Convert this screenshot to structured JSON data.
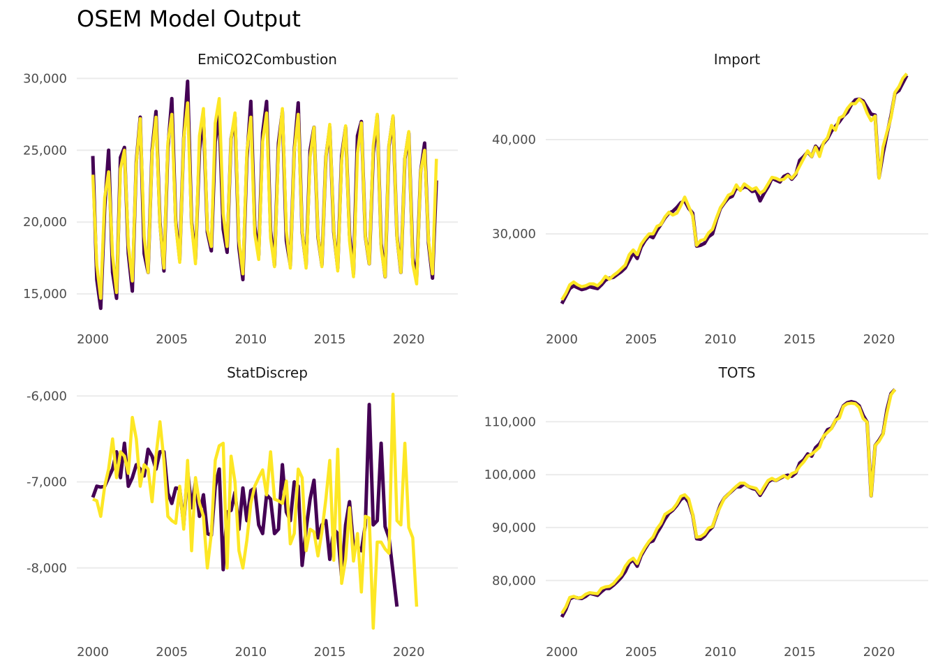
{
  "title": "OSEM Model Output",
  "colors": {
    "series_a": "#440154",
    "series_b": "#FDE725",
    "grid": "#EBEBEB"
  },
  "chart_data": [
    {
      "type": "line",
      "title": "EmiCO2Combustion",
      "x_start": 2000.0,
      "x_step": 0.25,
      "xlim": [
        2000,
        2022
      ],
      "xticks": [
        2000,
        2005,
        2010,
        2015,
        2020
      ],
      "xtick_labels": [
        "2000",
        "2005",
        "2010",
        "2015",
        "2020"
      ],
      "yticks": [
        15000,
        20000,
        25000,
        30000
      ],
      "ytick_labels": [
        "15,000",
        "20,000",
        "25,000",
        "30,000"
      ],
      "ylim": [
        13600,
        30600
      ],
      "grid": true,
      "series": [
        {
          "values": [
            24600,
            16000,
            14000,
            21000,
            25000,
            16500,
            14700,
            24500,
            25200,
            17800,
            15200,
            24200,
            27300,
            17800,
            16500,
            25000,
            27700,
            20000,
            16600,
            25100,
            28600,
            20000,
            17400,
            25800,
            29800,
            20000,
            17400,
            25000,
            27400,
            19300,
            18000,
            25600,
            27400,
            19500,
            17900,
            25800,
            27300,
            18200,
            16000,
            24400,
            28400,
            19700,
            17700,
            26200,
            28400,
            19400,
            17000,
            25500,
            27700,
            18700,
            17000,
            25000,
            28300,
            19300,
            17000,
            25000,
            26600,
            19000,
            17000,
            24500,
            26600,
            19300,
            16800,
            24600,
            26600,
            19100,
            16400,
            26000,
            27000,
            19000,
            17100,
            24800,
            27400,
            18500,
            16200,
            25300,
            27300,
            19000,
            16500,
            24400,
            26200,
            17500,
            16100,
            23500,
            25500,
            18500,
            16100,
            22900
          ]
        },
        {
          "values": [
            23300,
            17000,
            14700,
            21700,
            23500,
            17700,
            15100,
            23700,
            25000,
            18400,
            15900,
            24100,
            27200,
            19000,
            16500,
            24800,
            27300,
            19800,
            16800,
            25500,
            27500,
            19800,
            17200,
            25800,
            28300,
            19800,
            17100,
            26000,
            27900,
            19500,
            18300,
            26900,
            28600,
            20600,
            18300,
            25800,
            27600,
            18700,
            16400,
            24900,
            27300,
            19200,
            17400,
            25600,
            27600,
            18900,
            16900,
            25000,
            27900,
            19400,
            16800,
            24900,
            27500,
            19400,
            16800,
            24500,
            26600,
            19100,
            16900,
            24500,
            26800,
            19400,
            16600,
            24300,
            26700,
            18700,
            16200,
            24800,
            26900,
            19000,
            17100,
            25300,
            27500,
            18200,
            16200,
            25400,
            27400,
            18900,
            16500,
            24500,
            26300,
            17100,
            15700,
            23500,
            25000,
            18700,
            16400,
            24400
          ]
        }
      ]
    },
    {
      "type": "line",
      "title": "Import",
      "x_start": 2000.0,
      "x_step": 0.25,
      "xlim": [
        2000,
        2022
      ],
      "xticks": [
        2000,
        2005,
        2010,
        2015,
        2020
      ],
      "xtick_labels": [
        "2000",
        "2005",
        "2010",
        "2015",
        "2020"
      ],
      "yticks": [
        30000,
        40000
      ],
      "ytick_labels": [
        "30,000",
        "40,000"
      ],
      "ylim": [
        21500,
        47400
      ],
      "grid": true,
      "series": [
        {
          "values": [
            22600,
            23400,
            24200,
            24500,
            24300,
            24100,
            24200,
            24400,
            24300,
            24200,
            24600,
            25100,
            25300,
            25400,
            25700,
            26000,
            26400,
            27200,
            28000,
            27400,
            28600,
            29300,
            29800,
            29600,
            30400,
            31000,
            31700,
            32200,
            32400,
            32800,
            33300,
            33500,
            32700,
            32200,
            28700,
            28800,
            29000,
            29700,
            30000,
            31500,
            32700,
            33300,
            33800,
            34000,
            34900,
            34700,
            35000,
            34900,
            34500,
            34600,
            33500,
            34300,
            35000,
            35900,
            35700,
            35500,
            36100,
            36300,
            35800,
            36300,
            37800,
            38200,
            38700,
            38200,
            39300,
            38800,
            39600,
            40100,
            40900,
            41400,
            41900,
            42500,
            42900,
            43700,
            44200,
            44300,
            44100,
            43400,
            42700,
            42600,
            36000,
            38500,
            40600,
            42500,
            44900,
            45200,
            46000,
            46800
          ]
        },
        {
          "values": [
            23000,
            23700,
            24600,
            24900,
            24600,
            24400,
            24500,
            24700,
            24700,
            24500,
            24900,
            25500,
            25200,
            25600,
            25900,
            26300,
            26700,
            27800,
            28300,
            27800,
            28900,
            29500,
            30000,
            30000,
            30800,
            31000,
            31800,
            32300,
            32000,
            32200,
            33000,
            33900,
            32900,
            31900,
            28800,
            29300,
            29400,
            30100,
            30500,
            31700,
            32800,
            33400,
            34100,
            34300,
            35200,
            34600,
            35300,
            35000,
            34700,
            34900,
            34300,
            34600,
            35300,
            36000,
            35900,
            35700,
            35800,
            36200,
            35900,
            36400,
            37200,
            38000,
            38800,
            38200,
            39200,
            38200,
            39700,
            40200,
            41500,
            41000,
            42300,
            42500,
            43300,
            43800,
            43800,
            44300,
            43900,
            42800,
            42000,
            42500,
            35900,
            39200,
            40800,
            42300,
            45000,
            45600,
            46500,
            47000
          ]
        }
      ]
    },
    {
      "type": "line",
      "title": "StatDiscrep",
      "x_start": 2000.0,
      "x_step": 0.25,
      "xlim": [
        2000,
        2022
      ],
      "xticks": [
        2000,
        2005,
        2010,
        2015,
        2020
      ],
      "xtick_labels": [
        "2000",
        "2005",
        "2010",
        "2015",
        "2020"
      ],
      "yticks": [
        -8000,
        -7000,
        -6000
      ],
      "ytick_labels": [
        "-8,000",
        "-7,000",
        "-6,000"
      ],
      "ylim": [
        -8700,
        -5900
      ],
      "grid": true,
      "series": [
        {
          "values": [
            -7180,
            -7050,
            -7060,
            -7050,
            -6950,
            -6850,
            -6650,
            -6950,
            -6550,
            -7050,
            -6950,
            -6800,
            -6850,
            -6930,
            -6620,
            -6700,
            -6850,
            -6650,
            -6650,
            -7130,
            -7250,
            -7070,
            -7080,
            -7500,
            -6870,
            -7300,
            -7000,
            -7400,
            -7150,
            -7600,
            -7620,
            -7050,
            -6850,
            -8020,
            -7350,
            -7330,
            -7120,
            -7550,
            -7070,
            -7450,
            -7100,
            -7070,
            -7500,
            -7600,
            -7150,
            -7200,
            -7600,
            -7550,
            -6800,
            -7350,
            -7450,
            -7000,
            -7050,
            -7970,
            -7550,
            -7200,
            -6980,
            -7650,
            -7500,
            -7450,
            -7900,
            -7550,
            -7600,
            -8100,
            -7500,
            -7230,
            -7750,
            -7750,
            -7800,
            -7500,
            -6100,
            -7500,
            -7450,
            -6550,
            -7520,
            -7650,
            -8050,
            -8450
          ]
        },
        {
          "values": [
            -7200,
            -7220,
            -7400,
            -7050,
            -6850,
            -6500,
            -6950,
            -6650,
            -6700,
            -6900,
            -6250,
            -6500,
            -7050,
            -6800,
            -6850,
            -7230,
            -6700,
            -6300,
            -6750,
            -7400,
            -7450,
            -7480,
            -7050,
            -7550,
            -6750,
            -7800,
            -6950,
            -7250,
            -7400,
            -8000,
            -7600,
            -6750,
            -6580,
            -6550,
            -8000,
            -6700,
            -7000,
            -7800,
            -8000,
            -7680,
            -7250,
            -7050,
            -6950,
            -6860,
            -7150,
            -6650,
            -7200,
            -7220,
            -7250,
            -6990,
            -7720,
            -7600,
            -6850,
            -6950,
            -7800,
            -7550,
            -7580,
            -7860,
            -7580,
            -7200,
            -6750,
            -7910,
            -6620,
            -8180,
            -7900,
            -7300,
            -7920,
            -7600,
            -8280,
            -7400,
            -7420,
            -8700,
            -7700,
            -7700,
            -7780,
            -7830,
            -5980,
            -7450,
            -7500,
            -6550,
            -7530,
            -7650,
            -8450
          ]
        }
      ]
    },
    {
      "type": "line",
      "title": "TOTS",
      "x_start": 2000.0,
      "x_step": 0.25,
      "xlim": [
        2000,
        2022
      ],
      "xticks": [
        2000,
        2005,
        2010,
        2015,
        2020
      ],
      "xtick_labels": [
        "2000",
        "2005",
        "2010",
        "2015",
        "2020"
      ],
      "yticks": [
        80000,
        90000,
        100000,
        110000
      ],
      "ytick_labels": [
        "80,000",
        "90,000",
        "100,000",
        "110,000"
      ],
      "ylim": [
        71000,
        116500
      ],
      "grid": true,
      "series": [
        {
          "values": [
            73100,
            74500,
            76500,
            76900,
            76700,
            76600,
            77000,
            77600,
            77400,
            77200,
            77900,
            78500,
            78500,
            79100,
            79800,
            80600,
            81700,
            83300,
            83900,
            82700,
            84700,
            86000,
            87200,
            87500,
            89000,
            90200,
            91600,
            92700,
            93300,
            94200,
            95300,
            95800,
            94800,
            92400,
            87900,
            87800,
            88400,
            89400,
            90100,
            92300,
            94300,
            95600,
            96300,
            97000,
            97700,
            97700,
            98300,
            97800,
            97400,
            97200,
            96100,
            97300,
            98600,
            99100,
            98900,
            99300,
            99700,
            99900,
            99700,
            100300,
            102200,
            102800,
            103900,
            103500,
            105100,
            105800,
            107100,
            108500,
            108800,
            110200,
            111200,
            113000,
            113600,
            113800,
            113600,
            113000,
            111200,
            109900,
            96000,
            105500,
            106500,
            107700,
            112300,
            115300,
            116100
          ]
        },
        {
          "values": [
            73800,
            75000,
            76800,
            77000,
            76700,
            76800,
            77400,
            77700,
            77600,
            77500,
            78500,
            78800,
            78900,
            79400,
            80300,
            81100,
            82700,
            83700,
            84200,
            83200,
            85000,
            86300,
            87400,
            88200,
            89800,
            90800,
            92500,
            93000,
            93500,
            94500,
            95900,
            96200,
            95400,
            92500,
            88200,
            88300,
            88800,
            89900,
            90200,
            92400,
            94000,
            95600,
            96300,
            97100,
            97800,
            98400,
            98400,
            97800,
            97600,
            97400,
            96400,
            97700,
            98900,
            99300,
            98900,
            99400,
            99800,
            99300,
            100200,
            100500,
            101600,
            102400,
            103500,
            103900,
            104500,
            105200,
            107300,
            108000,
            108700,
            110300,
            110700,
            112900,
            113400,
            113500,
            113400,
            112700,
            110600,
            109900,
            96000,
            105500,
            106300,
            107600,
            111700,
            115100,
            116100
          ]
        }
      ]
    }
  ]
}
